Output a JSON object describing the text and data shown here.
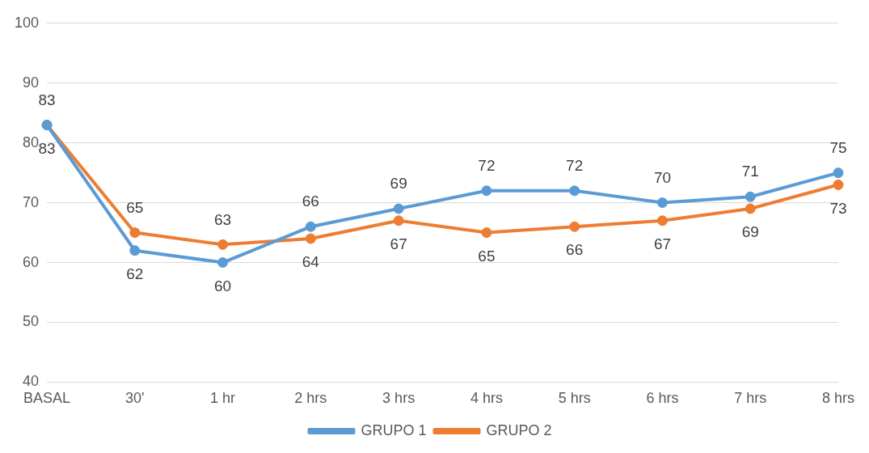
{
  "chart_data": {
    "type": "line",
    "categories": [
      "BASAL",
      "30'",
      "1 hr",
      "2 hrs",
      "3 hrs",
      "4 hrs",
      "5 hrs",
      "6 hrs",
      "7 hrs",
      "8 hrs"
    ],
    "series": [
      {
        "name": "GRUPO 1",
        "color": "#5b9bd5",
        "values": [
          83,
          62,
          60,
          66,
          69,
          72,
          72,
          70,
          71,
          75
        ]
      },
      {
        "name": "GRUPO 2",
        "color": "#ed7d31",
        "values": [
          83,
          65,
          63,
          64,
          67,
          65,
          66,
          67,
          69,
          73
        ]
      }
    ],
    "ylim": [
      40,
      100
    ],
    "yticks": [
      40,
      50,
      60,
      70,
      80,
      90,
      100
    ],
    "grid": "y",
    "legend": "bottom",
    "marker": "circle",
    "line_style": "solid",
    "data_labels": true
  }
}
